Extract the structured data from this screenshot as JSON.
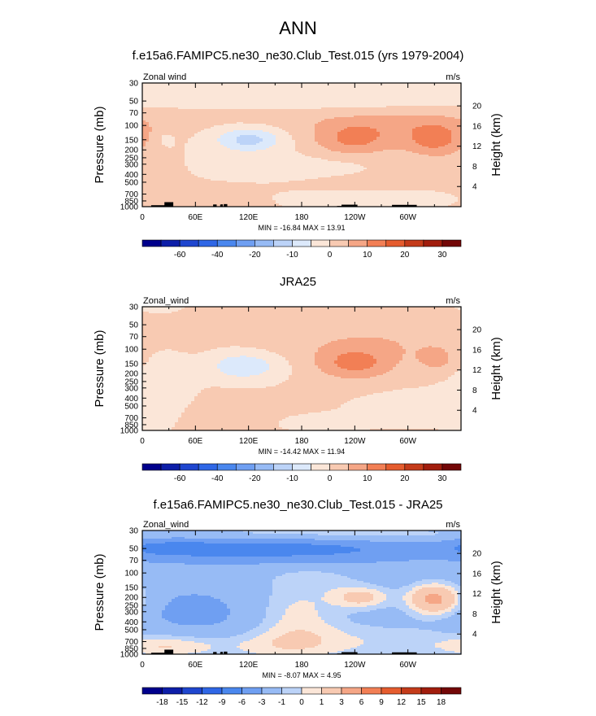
{
  "page": {
    "title": "ANN",
    "colors": {
      "land": "#000000",
      "outline": "#000000"
    }
  },
  "chart_data": [
    {
      "type": "heatmap",
      "title": "f.e15a6.FAMIPC5.ne30_ne30.Club_Test.015 (yrs 1979-2004)",
      "left_string": "Zonal wind",
      "right_string": "m/s",
      "ylabel": "Pressure (mb)",
      "ylabel_right": "Height (km)",
      "x_ticks": [
        "0",
        "60E",
        "120E",
        "180",
        "120W",
        "60W"
      ],
      "x_tick_lon": [
        0,
        60,
        120,
        180,
        240,
        300
      ],
      "y_ticks": [
        "30",
        "50",
        "70",
        "100",
        "150",
        "200",
        "250",
        "300",
        "400",
        "500",
        "700",
        "850",
        "1000"
      ],
      "y_tick_p": [
        30,
        50,
        70,
        100,
        150,
        200,
        250,
        300,
        400,
        500,
        700,
        850,
        1000
      ],
      "y_right_ticks": [
        "20",
        "16",
        "12",
        "8",
        "4"
      ],
      "y_right_km": [
        20,
        16,
        12,
        8,
        4
      ],
      "xlim": [
        0,
        360
      ],
      "ylim": [
        1000,
        30
      ],
      "y_scale": "log",
      "stats": "MIN = -16.84  MAX = 13.91",
      "min": -16.84,
      "max": 13.91,
      "levels": [
        -70,
        -60,
        -50,
        -40,
        -30,
        -20,
        -15,
        -10,
        -5,
        0,
        5,
        10,
        15,
        20,
        25,
        30
      ],
      "colorbar_labels": [
        "-60",
        "-40",
        "-20",
        "-10",
        "0",
        "10",
        "20",
        "30"
      ],
      "colorbar_label_index": [
        1,
        3,
        5,
        7,
        9,
        11,
        13,
        15
      ],
      "colors": [
        "#00008c",
        "#0d1ea8",
        "#1f46cf",
        "#2f67e6",
        "#4a87ee",
        "#6f9ff2",
        "#97bbf5",
        "#bcd3f8",
        "#dce9fb",
        "#fbe6d8",
        "#f8cab2",
        "#f5a686",
        "#f27f55",
        "#e55c2e",
        "#c43b1a",
        "#a11d0d",
        "#730707"
      ],
      "background": 0.0,
      "features": [
        {
          "lon": 120,
          "p": 150,
          "slon": 26,
          "sdec": 0.1,
          "amp": -12
        },
        {
          "lon": 28,
          "p": 150,
          "slon": 5,
          "sdec": 0.05,
          "amp": -5
        },
        {
          "lon": 240,
          "p": 150,
          "slon": 34,
          "sdec": 0.14,
          "amp": 11
        },
        {
          "lon": 331,
          "p": 150,
          "slon": 25,
          "sdec": 0.14,
          "amp": 12
        },
        {
          "lon": 285,
          "p": 90,
          "slon": 85,
          "sdec": 0.12,
          "amp": 6
        },
        {
          "lon": 110,
          "p": 75,
          "slon": 60,
          "sdec": 0.07,
          "amp": 2.6
        },
        {
          "lon": 180,
          "p": 40,
          "slon": 200,
          "sdec": 0.2,
          "amp": -3
        },
        {
          "lon": 160,
          "p": 350,
          "slon": 90,
          "sdec": 0.12,
          "amp": -3
        },
        {
          "lon": 310,
          "p": 380,
          "slon": 40,
          "sdec": 0.12,
          "amp": 2.5
        },
        {
          "lon": 230,
          "p": 500,
          "slon": 60,
          "sdec": 0.1,
          "amp": 2.4
        },
        {
          "lon": 70,
          "p": 750,
          "slon": 50,
          "sdec": 0.12,
          "amp": 3.2
        },
        {
          "lon": 20,
          "p": 400,
          "slon": 30,
          "sdec": 0.15,
          "amp": 2.5
        },
        {
          "lon": 270,
          "p": 750,
          "slon": 110,
          "sdec": 0.08,
          "amp": -2
        }
      ],
      "land": [
        [
          10,
          30,
          960
        ],
        [
          25,
          35,
          880
        ],
        [
          80,
          84,
          940
        ],
        [
          88,
          91,
          940
        ],
        [
          92,
          96,
          930
        ],
        [
          220,
          225,
          980
        ],
        [
          225,
          243,
          945
        ],
        [
          282,
          310,
          950
        ]
      ]
    },
    {
      "type": "heatmap",
      "title": "JRA25",
      "left_string": "Zonal_wind",
      "right_string": "m/s",
      "ylabel": "Pressure (mb)",
      "ylabel_right": "Height (km)",
      "x_ticks": [
        "0",
        "60E",
        "120E",
        "180",
        "120W",
        "60W"
      ],
      "x_tick_lon": [
        0,
        60,
        120,
        180,
        240,
        300
      ],
      "y_ticks": [
        "30",
        "50",
        "70",
        "100",
        "150",
        "200",
        "250",
        "300",
        "400",
        "500",
        "700",
        "850",
        "1000"
      ],
      "y_tick_p": [
        30,
        50,
        70,
        100,
        150,
        200,
        250,
        300,
        400,
        500,
        700,
        850,
        1000
      ],
      "y_right_ticks": [
        "20",
        "16",
        "12",
        "8",
        "4"
      ],
      "y_right_km": [
        20,
        16,
        12,
        8,
        4
      ],
      "xlim": [
        0,
        360
      ],
      "ylim": [
        1000,
        30
      ],
      "y_scale": "log",
      "stats": "MIN = -14.42  MAX = 11.94",
      "min": -14.42,
      "max": 11.94,
      "levels": [
        -70,
        -60,
        -50,
        -40,
        -30,
        -20,
        -15,
        -10,
        -5,
        0,
        5,
        10,
        15,
        20,
        25,
        30
      ],
      "colorbar_labels": [
        "-60",
        "-40",
        "-20",
        "-10",
        "0",
        "10",
        "20",
        "30"
      ],
      "colorbar_label_index": [
        1,
        3,
        5,
        7,
        9,
        11,
        13,
        15
      ],
      "colors": [
        "#00008c",
        "#0d1ea8",
        "#1f46cf",
        "#2f67e6",
        "#4a87ee",
        "#6f9ff2",
        "#97bbf5",
        "#bcd3f8",
        "#dce9fb",
        "#fbe6d8",
        "#f8cab2",
        "#f5a686",
        "#f27f55",
        "#e55c2e",
        "#c43b1a",
        "#a11d0d",
        "#730707"
      ],
      "background": 0.5,
      "features": [
        {
          "lon": 115,
          "p": 160,
          "slon": 28,
          "sdec": 0.12,
          "amp": -10
        },
        {
          "lon": 20,
          "p": 240,
          "slon": 25,
          "sdec": 0.35,
          "amp": -4
        },
        {
          "lon": 240,
          "p": 150,
          "slon": 30,
          "sdec": 0.14,
          "amp": 10.5
        },
        {
          "lon": 335,
          "p": 140,
          "slon": 18,
          "sdec": 0.12,
          "amp": 5
        },
        {
          "lon": 270,
          "p": 80,
          "slon": 95,
          "sdec": 0.2,
          "amp": 4
        },
        {
          "lon": 320,
          "p": 520,
          "slon": 50,
          "sdec": 0.14,
          "amp": -3
        },
        {
          "lon": 200,
          "p": 800,
          "slon": 40,
          "sdec": 0.08,
          "amp": -1.5
        },
        {
          "lon": 70,
          "p": 600,
          "slon": 50,
          "sdec": 0.15,
          "amp": 1.5
        },
        {
          "lon": 15,
          "p": 30,
          "slon": 30,
          "sdec": 0.1,
          "amp": -1
        }
      ],
      "land": []
    },
    {
      "type": "heatmap",
      "title": "f.e15a6.FAMIPC5.ne30_ne30.Club_Test.015 - JRA25",
      "left_string": "Zonal_wind",
      "right_string": "m/s",
      "ylabel": "Pressure (mb)",
      "ylabel_right": "Height (km)",
      "x_ticks": [
        "0",
        "60E",
        "120E",
        "180",
        "120W",
        "60W"
      ],
      "x_tick_lon": [
        0,
        60,
        120,
        180,
        240,
        300
      ],
      "y_ticks": [
        "30",
        "50",
        "70",
        "100",
        "150",
        "200",
        "250",
        "300",
        "400",
        "500",
        "700",
        "850",
        "1000"
      ],
      "y_tick_p": [
        30,
        50,
        70,
        100,
        150,
        200,
        250,
        300,
        400,
        500,
        700,
        850,
        1000
      ],
      "y_right_ticks": [
        "20",
        "16",
        "12",
        "8",
        "4"
      ],
      "y_right_km": [
        20,
        16,
        12,
        8,
        4
      ],
      "xlim": [
        0,
        360
      ],
      "ylim": [
        1000,
        30
      ],
      "y_scale": "log",
      "stats": "MIN = -8.07  MAX =  4.95",
      "min": -8.07,
      "max": 4.95,
      "levels": [
        -18,
        -15,
        -12,
        -9,
        -6,
        -3,
        -1,
        0,
        1,
        3,
        6,
        9,
        12,
        15,
        18
      ],
      "colorbar_labels": [
        "-18",
        "-15",
        "-12",
        "-9",
        "-6",
        "-3",
        "-1",
        "0",
        "1",
        "3",
        "6",
        "9",
        "12",
        "15",
        "18"
      ],
      "colorbar_label_index": [
        0,
        1,
        2,
        3,
        4,
        5,
        6,
        7,
        8,
        9,
        10,
        11,
        12,
        13,
        14
      ],
      "colors": [
        "#00008c",
        "#0d1ea8",
        "#1f46cf",
        "#2f67e6",
        "#4a87ee",
        "#6f9ff2",
        "#97bbf5",
        "#bcd3f8",
        "#fbe6d8",
        "#f8cab2",
        "#f5a686",
        "#f27f55",
        "#e55c2e",
        "#c43b1a",
        "#a11d0d",
        "#730707"
      ],
      "background": -2.2,
      "features": [
        {
          "lon": 150,
          "p": 50,
          "slon": 110,
          "sdec": 0.1,
          "amp": -6
        },
        {
          "lon": 30,
          "p": 48,
          "slon": 40,
          "sdec": 0.08,
          "amp": -3
        },
        {
          "lon": 180,
          "p": 35,
          "slon": 180,
          "sdec": 0.08,
          "amp": 2.5
        },
        {
          "lon": 330,
          "p": 210,
          "slon": 22,
          "sdec": 0.14,
          "amp": 6
        },
        {
          "lon": 248,
          "p": 200,
          "slon": 24,
          "sdec": 0.1,
          "amp": 3.6
        },
        {
          "lon": 175,
          "p": 300,
          "slon": 35,
          "sdec": 0.3,
          "amp": 2.4
        },
        {
          "lon": 60,
          "p": 350,
          "slon": 50,
          "sdec": 0.25,
          "amp": -1.5
        },
        {
          "lon": 140,
          "p": 800,
          "slon": 60,
          "sdec": 0.15,
          "amp": 1.8
        },
        {
          "lon": 30,
          "p": 800,
          "slon": 40,
          "sdec": 0.1,
          "amp": 2.5
        },
        {
          "lon": 270,
          "p": 700,
          "slon": 100,
          "sdec": 0.18,
          "amp": 1.8
        },
        {
          "lon": 200,
          "p": 120,
          "slon": 40,
          "sdec": 0.1,
          "amp": 1.2
        }
      ],
      "land": [
        [
          10,
          30,
          960
        ],
        [
          25,
          35,
          880
        ],
        [
          80,
          84,
          940
        ],
        [
          88,
          91,
          940
        ],
        [
          92,
          96,
          930
        ],
        [
          220,
          225,
          980
        ],
        [
          225,
          243,
          945
        ],
        [
          282,
          310,
          950
        ]
      ]
    }
  ]
}
